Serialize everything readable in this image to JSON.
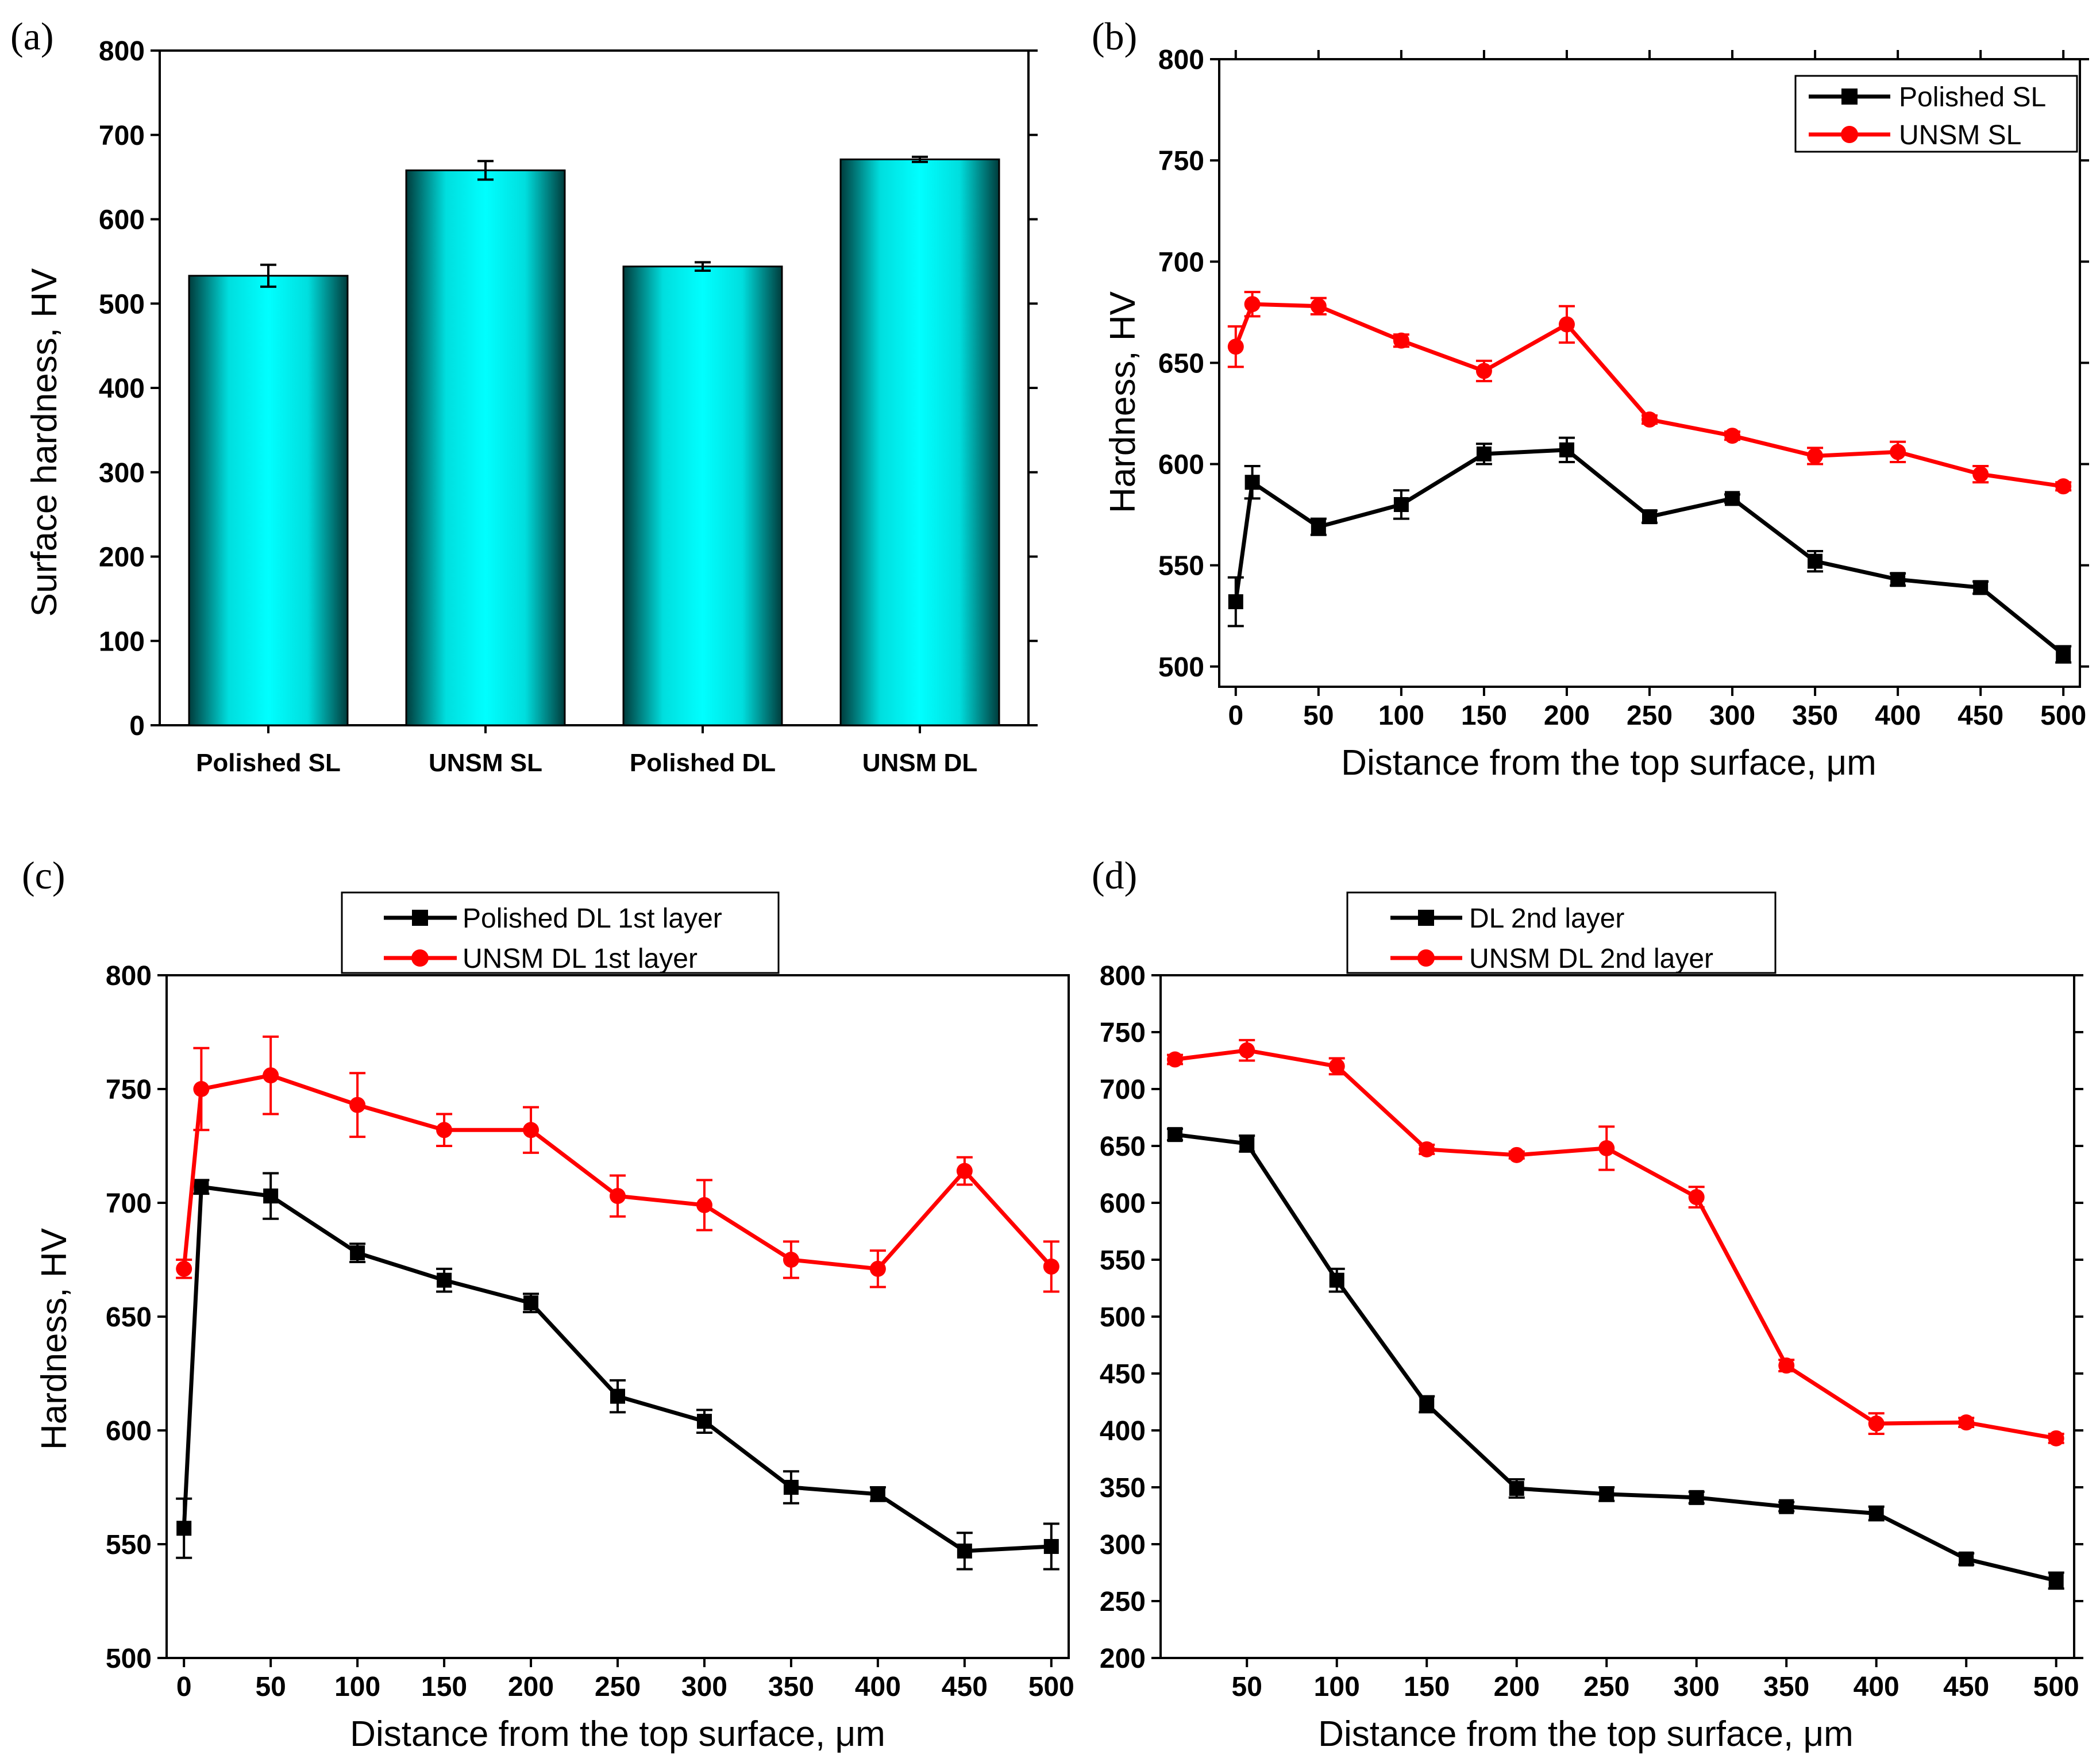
{
  "figure": {
    "colors": {
      "black_series": "#000000",
      "red_series": "#ff0000",
      "bar_edge": "#003c3c",
      "bar_center": "#00ffff"
    }
  },
  "chart_data": [
    {
      "id": "a",
      "panel_label": "(a)",
      "type": "bar",
      "categories": [
        "Polished SL",
        "UNSM SL",
        "Polished DL",
        "UNSM DL"
      ],
      "values": [
        533,
        658,
        544,
        671
      ],
      "errors": [
        13,
        11,
        5,
        3
      ],
      "xlabel": "",
      "ylabel": "Surface hardness, HV",
      "ylim": [
        0,
        800
      ],
      "yticks": [
        0,
        100,
        200,
        300,
        400,
        500,
        600,
        700,
        800
      ]
    },
    {
      "id": "b",
      "panel_label": "(b)",
      "type": "line",
      "xlabel": "Distance from the top surface, μm",
      "ylabel": "Hardness, HV",
      "xlim": [
        -10,
        510
      ],
      "ylim": [
        490,
        800
      ],
      "xticks": [
        0,
        50,
        100,
        150,
        200,
        250,
        300,
        350,
        400,
        450,
        500
      ],
      "yticks": [
        500,
        550,
        600,
        650,
        700,
        750,
        800
      ],
      "legend_position": "top-right",
      "series": [
        {
          "name": "Polished SL",
          "color": "#000000",
          "marker": "square",
          "x": [
            0,
            10,
            50,
            100,
            150,
            200,
            250,
            300,
            350,
            400,
            450,
            500
          ],
          "y": [
            532,
            591,
            569,
            580,
            605,
            607,
            574,
            583,
            552,
            543,
            539,
            506
          ],
          "err": [
            12,
            8,
            4,
            7,
            5,
            6,
            3,
            2,
            5,
            3,
            3,
            4
          ]
        },
        {
          "name": "UNSM SL",
          "color": "#ff0000",
          "marker": "circle",
          "x": [
            0,
            10,
            50,
            100,
            150,
            200,
            250,
            300,
            350,
            400,
            450,
            500
          ],
          "y": [
            658,
            679,
            678,
            661,
            646,
            669,
            622,
            614,
            604,
            606,
            595,
            589
          ],
          "err": [
            10,
            6,
            4,
            3,
            5,
            9,
            2,
            2,
            4,
            5,
            4,
            2
          ]
        }
      ]
    },
    {
      "id": "c",
      "panel_label": "(c)",
      "type": "line",
      "xlabel": "Distance from the top surface, μm",
      "ylabel": "Hardness, HV",
      "xlim": [
        -10,
        510
      ],
      "ylim": [
        500,
        800
      ],
      "xticks": [
        0,
        50,
        100,
        150,
        200,
        250,
        300,
        350,
        400,
        450,
        500
      ],
      "yticks": [
        500,
        550,
        600,
        650,
        700,
        750,
        800
      ],
      "legend_position": "top-outside",
      "series": [
        {
          "name": "Polished DL 1st layer",
          "color": "#000000",
          "marker": "square",
          "x": [
            0,
            10,
            50,
            100,
            150,
            200,
            250,
            300,
            350,
            400,
            450,
            500
          ],
          "y": [
            557,
            707,
            703,
            678,
            666,
            656,
            615,
            604,
            575,
            572,
            547,
            549
          ],
          "err": [
            13,
            3,
            10,
            4,
            5,
            4,
            7,
            5,
            7,
            3,
            8,
            10
          ]
        },
        {
          "name": "UNSM DL 1st layer",
          "color": "#ff0000",
          "marker": "circle",
          "x": [
            0,
            10,
            50,
            100,
            150,
            200,
            250,
            300,
            350,
            400,
            450,
            500
          ],
          "y": [
            671,
            750,
            756,
            743,
            732,
            732,
            703,
            699,
            675,
            671,
            714,
            672
          ],
          "err": [
            4,
            18,
            17,
            14,
            7,
            10,
            9,
            11,
            8,
            8,
            6,
            11
          ]
        }
      ]
    },
    {
      "id": "d",
      "panel_label": "(d)",
      "type": "line",
      "xlabel": "Distance from the top surface, μm",
      "ylabel": "",
      "xlim": [
        2,
        510
      ],
      "ylim": [
        200,
        800
      ],
      "xticks": [
        50,
        100,
        150,
        200,
        250,
        300,
        350,
        400,
        450,
        500
      ],
      "yticks": [
        200,
        250,
        300,
        350,
        400,
        450,
        500,
        550,
        600,
        650,
        700,
        750,
        800
      ],
      "legend_position": "top-outside",
      "series": [
        {
          "name": "DL 2nd layer",
          "color": "#000000",
          "marker": "square",
          "x": [
            10,
            50,
            100,
            150,
            200,
            250,
            300,
            350,
            400,
            450,
            500
          ],
          "y": [
            660,
            652,
            532,
            423,
            349,
            344,
            341,
            333,
            327,
            287,
            268
          ],
          "err": [
            5,
            7,
            10,
            7,
            8,
            6,
            5,
            4,
            6,
            5,
            7
          ]
        },
        {
          "name": "UNSM DL 2nd layer",
          "color": "#ff0000",
          "marker": "circle",
          "x": [
            10,
            50,
            100,
            150,
            200,
            250,
            300,
            350,
            400,
            450,
            500
          ],
          "y": [
            726,
            734,
            720,
            647,
            642,
            648,
            605,
            457,
            406,
            407,
            393
          ],
          "err": [
            4,
            9,
            7,
            4,
            3,
            19,
            9,
            5,
            9,
            4,
            4
          ]
        }
      ]
    }
  ]
}
